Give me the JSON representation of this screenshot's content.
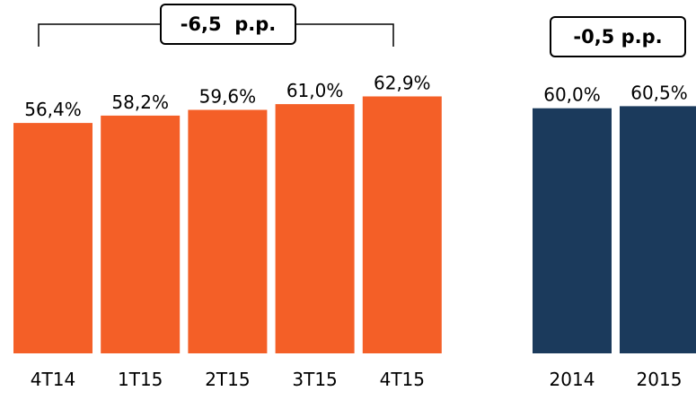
{
  "chart_data": [
    {
      "type": "bar",
      "categories": [
        "4T14",
        "1T15",
        "2T15",
        "3T15",
        "4T15"
      ],
      "values": [
        56.4,
        58.2,
        59.6,
        61.0,
        62.9
      ],
      "value_labels": [
        "56,4%",
        "58,2%",
        "59,6%",
        "61,0%",
        "62,9%"
      ],
      "color": "#f45f27",
      "annotation": "-6,5  p.p.",
      "grid": false,
      "legend": "none"
    },
    {
      "type": "bar",
      "categories": [
        "2014",
        "2015"
      ],
      "values": [
        60.0,
        60.5
      ],
      "value_labels": [
        "60,0%",
        "60,5%"
      ],
      "color": "#1b3a5c",
      "annotation": "-0,5 p.p.",
      "grid": false,
      "legend": "none"
    }
  ]
}
